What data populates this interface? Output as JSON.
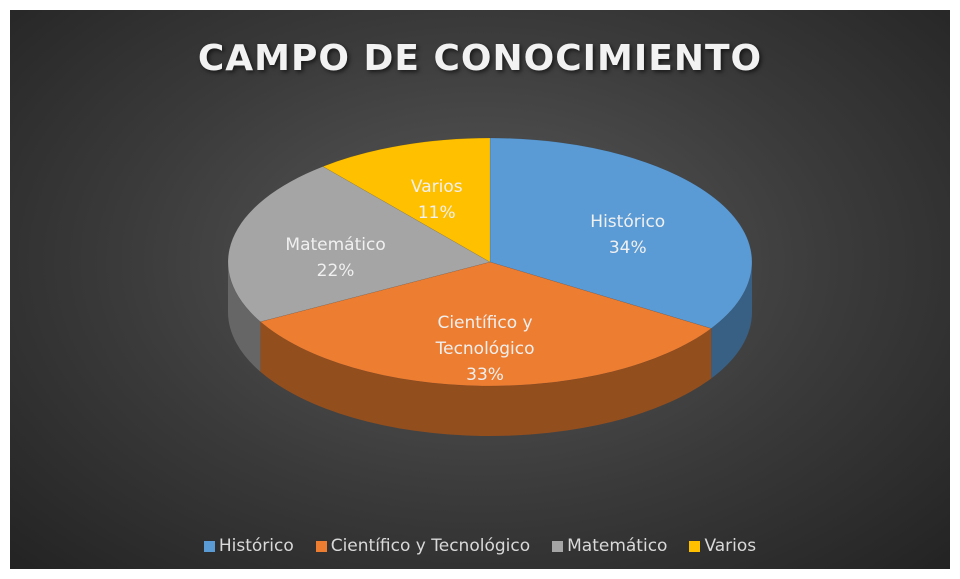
{
  "chart_data": {
    "type": "pie3d",
    "title": "CAMPO DE CONOCIMIENTO",
    "categories": [
      "Histórico",
      "Científico y Tecnológico",
      "Matemático",
      "Varios"
    ],
    "values": [
      34,
      33,
      22,
      11
    ],
    "value_labels": [
      "34%",
      "33%",
      "22%",
      "11%"
    ],
    "colors": [
      "#5b9bd5",
      "#ed7d31",
      "#a5a5a5",
      "#ffc000"
    ],
    "legend": "bottom"
  }
}
